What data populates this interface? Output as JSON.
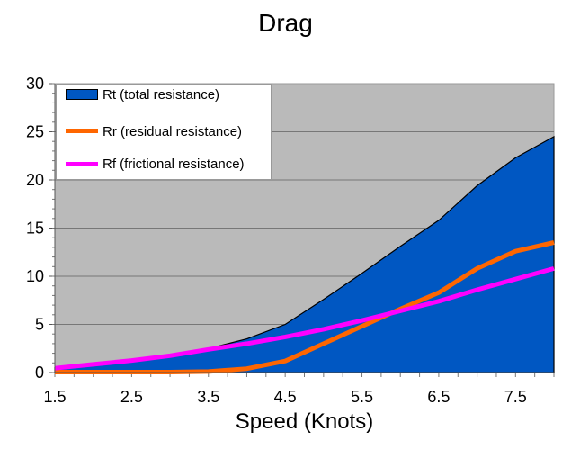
{
  "chart_data": {
    "type": "area",
    "title": "Drag",
    "xlabel": "Speed (Knots)",
    "ylabel": "",
    "xlim": [
      1.5,
      8.0
    ],
    "ylim": [
      0,
      30
    ],
    "x": [
      1.5,
      2.0,
      2.5,
      3.0,
      3.5,
      4.0,
      4.5,
      5.0,
      5.5,
      6.0,
      6.5,
      7.0,
      7.5,
      8.0
    ],
    "x_tick_labels": [
      "1.5",
      "2.5",
      "3.5",
      "4.5",
      "5.5",
      "6.5",
      "7.5"
    ],
    "y_tick_labels": [
      "0",
      "5",
      "10",
      "15",
      "20",
      "25",
      "30"
    ],
    "grid": true,
    "legend_position": "upper-left",
    "series": [
      {
        "name": "Rt (total resistance)",
        "kind": "area",
        "color": "#0057c2",
        "values": [
          0.5,
          0.9,
          1.3,
          1.8,
          2.5,
          3.5,
          5.0,
          7.6,
          10.3,
          13.1,
          15.8,
          19.4,
          22.3,
          24.5
        ]
      },
      {
        "name": "Rr (residual resistance)",
        "kind": "line",
        "color": "#ff6600",
        "values": [
          0.05,
          0.05,
          0.05,
          0.05,
          0.1,
          0.4,
          1.2,
          3.0,
          4.8,
          6.6,
          8.3,
          10.8,
          12.6,
          13.5
        ]
      },
      {
        "name": "Rf (frictional resistance)",
        "kind": "line",
        "color": "#ff00ff",
        "values": [
          0.45,
          0.85,
          1.25,
          1.75,
          2.4,
          3.0,
          3.7,
          4.5,
          5.4,
          6.4,
          7.4,
          8.6,
          9.7,
          10.8
        ]
      }
    ]
  },
  "legend": {
    "items": [
      {
        "label": "Rt (total resistance)",
        "color": "#0057c2"
      },
      {
        "label": "Rr (residual resistance)",
        "color": "#ff6600"
      },
      {
        "label": "Rf (frictional resistance)",
        "color": "#ff00ff"
      }
    ]
  },
  "colors": {
    "plot_bg": "#bababa",
    "gridline": "#777777"
  }
}
